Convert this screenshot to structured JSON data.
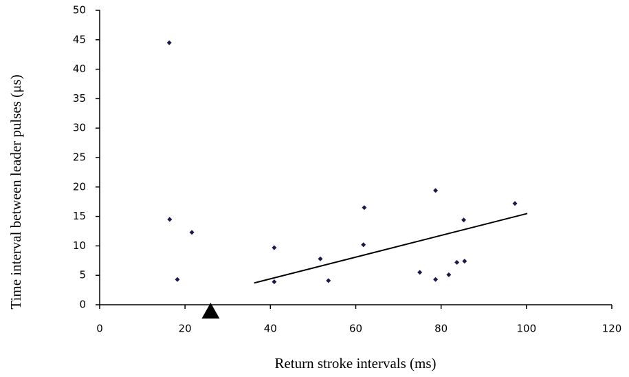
{
  "chart_data": {
    "type": "scatter",
    "xlabel": "Return stroke intervals (ms)",
    "ylabel": "Time interval between leader pulses (μs)",
    "series": [
      {
        "color": "#1a1a4a",
        "x": [
          16.3,
          16.4,
          18.2,
          21.6,
          40.9,
          40.9,
          51.7,
          53.6,
          62.0,
          61.8,
          75.0,
          78.7,
          78.7,
          81.8,
          83.7,
          85.5,
          85.3,
          97.3
        ],
        "values": [
          44.5,
          14.5,
          4.3,
          12.3,
          9.7,
          3.9,
          7.8,
          4.1,
          16.5,
          10.2,
          5.5,
          19.4,
          4.3,
          5.1,
          7.2,
          7.4,
          14.4,
          17.2
        ]
      }
    ],
    "trendline": {
      "x": [
        36.2,
        100.2
      ],
      "values": [
        3.7,
        15.5
      ],
      "color": "#000000"
    },
    "marker": {
      "x": 26,
      "color": "#000000"
    },
    "xlim": [
      0,
      120
    ],
    "xticks": [
      0,
      20,
      40,
      60,
      80,
      100,
      120
    ],
    "ylim": [
      0,
      50
    ],
    "yticks": [
      0,
      5,
      10,
      15,
      20,
      25,
      30,
      35,
      40,
      45,
      50
    ]
  }
}
